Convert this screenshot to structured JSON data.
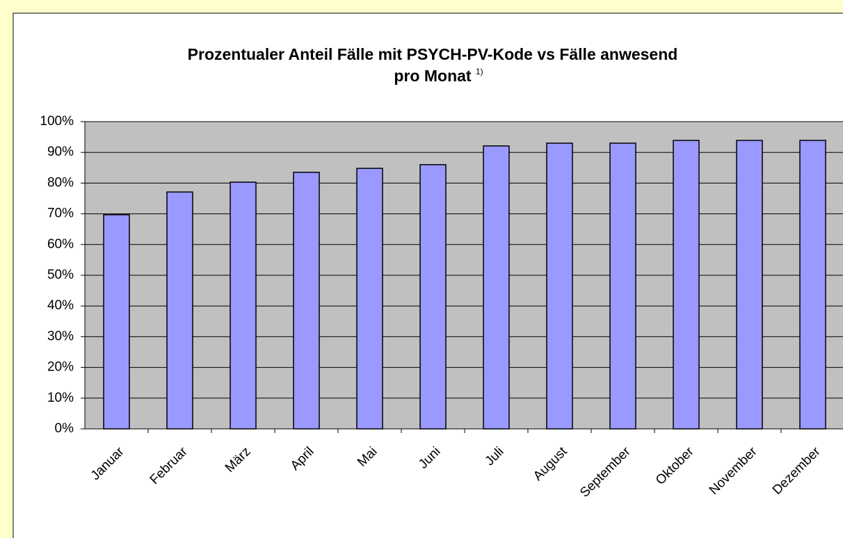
{
  "chart_data": {
    "type": "bar",
    "title": [
      "Prozentualer Anteil Fälle mit PSYCH-PV-Kode vs Fälle anwesend",
      "pro Monat"
    ],
    "title_note": "1)",
    "categories": [
      "Januar",
      "Februar",
      "März",
      "April",
      "Mai",
      "Juni",
      "Juli",
      "August",
      "September",
      "Oktober",
      "November",
      "Dezember"
    ],
    "values": [
      69.7,
      77.1,
      80.3,
      83.5,
      84.8,
      86,
      92.1,
      93,
      93,
      93.9,
      93.9,
      93.9
    ],
    "color": "#9999ff",
    "ylim": [
      0,
      100
    ],
    "yticks": [
      {
        "value": 0,
        "label": "0%"
      },
      {
        "value": 10,
        "label": "10%"
      },
      {
        "value": 20,
        "label": "20%"
      },
      {
        "value": 30,
        "label": "30%"
      },
      {
        "value": 40,
        "label": "40%"
      },
      {
        "value": 50,
        "label": "50%"
      },
      {
        "value": 60,
        "label": "60%"
      },
      {
        "value": 70,
        "label": "70%"
      },
      {
        "value": 80,
        "label": "80%"
      },
      {
        "value": 90,
        "label": "90%"
      },
      {
        "value": 100,
        "label": "100%"
      }
    ],
    "grid": true
  }
}
